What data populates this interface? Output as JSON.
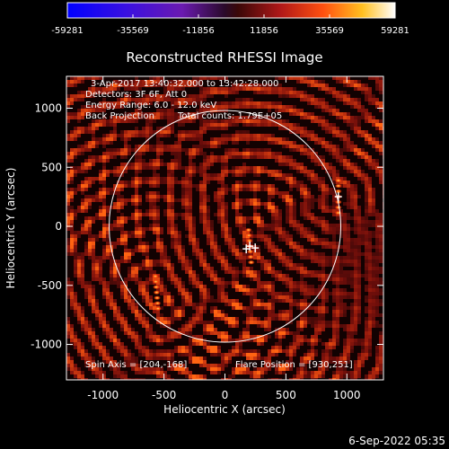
{
  "chart_data": {
    "type": "heatmap",
    "title": "Reconstructed RHESSI Image",
    "xlabel": "Heliocentric X (arcsec)",
    "ylabel": "Heliocentric Y (arcsec)",
    "xlim": [
      -1300,
      1300
    ],
    "ylim": [
      -1300,
      1270
    ],
    "x_ticks": [
      -1000,
      -500,
      0,
      500,
      1000
    ],
    "y_ticks": [
      1000,
      500,
      0,
      -500,
      -1000
    ],
    "x_tick_labels": [
      "-1000",
      "-500",
      "0",
      "500",
      "1000"
    ],
    "y_tick_labels": [
      "1000",
      "500",
      "0",
      "-500",
      "-1000"
    ],
    "colorbar": {
      "min": -59281,
      "max": 59281,
      "ticks": [
        -59281,
        -35569,
        -11856,
        11856,
        35569,
        59281
      ],
      "tick_labels": [
        "-59281",
        "-35569",
        "-11856",
        "11856",
        "35569",
        "59281"
      ],
      "colormap": "blue-purple-red-yellow-white"
    },
    "solar_limb": {
      "center": [
        0,
        0
      ],
      "radius_arcsec": 950
    },
    "sources": [
      {
        "x": 930,
        "y": 251
      },
      {
        "x": -560,
        "y": -560
      },
      {
        "x": 204,
        "y": -168
      }
    ],
    "annotations": {
      "time": "3-Apr-2017 13:40:32.000 to 13:42:28.000",
      "detectors": "Detectors: 3F 6F, Att 0",
      "energy": "Energy Range: 6.0 - 12.0 keV",
      "method": "Back Projection",
      "counts": "Total counts: 1.79E+05",
      "spin_axis": "Spin Axis = [204,-168]",
      "flare_position": "Flare Position = [930,251]"
    },
    "grid": false
  },
  "footer": {
    "timestamp": "6-Sep-2022 05:35"
  },
  "colors": {
    "background": "#000000",
    "axes": "#ffffff",
    "limb": "#ffffff",
    "map_bright": "#ff4a10",
    "map_dark": "#3a0606"
  }
}
